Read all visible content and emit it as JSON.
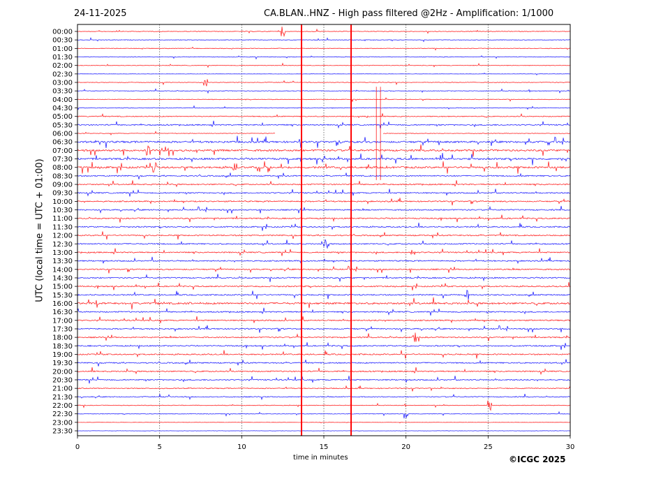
{
  "header": {
    "date": "24-11-2025",
    "title": "CA.BLAN..HNZ - High pass filtered @2Hz - Amplification: 1/1000"
  },
  "footer": {
    "copyright": "©ICGC 2025"
  },
  "chart_data": {
    "type": "line",
    "title": "CA.BLAN..HNZ - High pass filtered @2Hz - Amplification: 1/1000",
    "xlabel": "time in minutes",
    "ylabel": "UTC (local time = UTC + 01:00)",
    "xlim": [
      0,
      30
    ],
    "xticks": [
      "0",
      "5",
      "10",
      "15",
      "20",
      "25",
      "30"
    ],
    "grid": "vertical dotted at every 5 minutes",
    "rows": [
      "00:00",
      "00:30",
      "01:00",
      "01:30",
      "02:00",
      "02:30",
      "03:00",
      "03:30",
      "04:00",
      "04:30",
      "05:00",
      "05:30",
      "06:00",
      "06:30",
      "07:00",
      "07:30",
      "08:00",
      "08:30",
      "09:00",
      "09:30",
      "10:00",
      "10:30",
      "11:00",
      "11:30",
      "12:00",
      "12:30",
      "13:00",
      "13:30",
      "14:00",
      "14:30",
      "15:00",
      "15:30",
      "16:00",
      "16:30",
      "17:00",
      "17:30",
      "18:00",
      "18:30",
      "19:00",
      "19:30",
      "20:00",
      "20:30",
      "21:00",
      "21:30",
      "22:00",
      "22:30",
      "23:00",
      "23:30"
    ],
    "row_colors": [
      "#ff0000",
      "#0000ff"
    ],
    "activity_level": [
      1,
      1,
      1,
      1,
      1,
      0.5,
      1,
      1,
      1,
      1,
      1.5,
      2,
      1,
      3,
      3,
      3,
      3,
      2,
      2,
      2,
      2,
      2,
      2,
      2,
      2,
      2,
      2,
      2,
      2,
      2,
      2,
      2,
      3,
      2,
      2,
      2,
      2,
      2,
      2,
      2,
      2,
      2,
      1.5,
      1.5,
      1,
      1,
      0.5,
      0.5
    ],
    "vertical_events": [
      {
        "minute": 13.64,
        "from_row": 0,
        "to_row": 47
      },
      {
        "minute": 16.66,
        "from_row": 0,
        "to_row": 47
      },
      {
        "minute": 18.2,
        "from_row": 7,
        "to_row": 17
      },
      {
        "minute": 18.45,
        "from_row": 7,
        "to_row": 17
      }
    ],
    "data_gaps": [
      {
        "row": 12,
        "from_minute": 12.05,
        "to_minute": 18.6
      }
    ],
    "notable_spikes": [
      {
        "row": 0,
        "minute": 12.5
      },
      {
        "row": 6,
        "minute": 7.8
      },
      {
        "row": 14,
        "minute": 4.3
      },
      {
        "row": 16,
        "minute": 4.7
      },
      {
        "row": 16,
        "minute": 9.6
      },
      {
        "row": 25,
        "minute": 15.1
      },
      {
        "row": 26,
        "minute": 20.4
      },
      {
        "row": 31,
        "minute": 23.7
      },
      {
        "row": 36,
        "minute": 20.5
      },
      {
        "row": 44,
        "minute": 25.1
      },
      {
        "row": 45,
        "minute": 20.0
      }
    ]
  }
}
